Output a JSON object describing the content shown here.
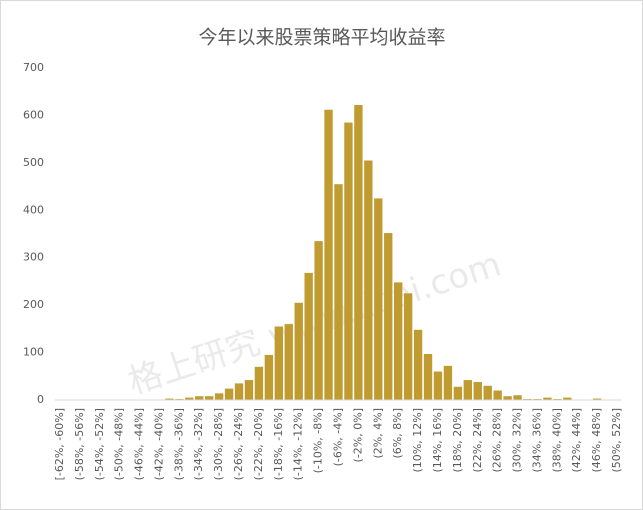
{
  "chart_data": {
    "type": "bar",
    "title": "今年以来股票策略平均收益率",
    "watermark": "格上研究 www.licai.com",
    "categories": [
      "[-62%, -60%]",
      null,
      "(-58%, -56%]",
      null,
      "(-54%, -52%]",
      null,
      "(-50%, -48%]",
      null,
      "(-46%, -44%]",
      null,
      "(-42%, -40%]",
      null,
      "(-38%, -36%]",
      null,
      "(-34%, -32%]",
      null,
      "(-30%, -28%]",
      null,
      "(-26%, -24%]",
      null,
      "(-22%, -20%]",
      null,
      "(-18%, -16%]",
      null,
      "(-14%, -12%]",
      null,
      "(-10%, -8%]",
      null,
      "(-6%, -4%]",
      null,
      "(-2%, 0%]",
      null,
      "(2%, 4%]",
      null,
      "(6%, 8%]",
      null,
      "(10%, 12%]",
      null,
      "(14%, 16%]",
      null,
      "(18%, 20%]",
      null,
      "(22%, 24%]",
      null,
      "(26%, 28%]",
      null,
      "(30%, 32%]",
      null,
      "(34%, 36%]",
      null,
      "(38%, 40%]",
      null,
      "(42%, 44%]",
      null,
      "(46%, 48%]",
      null,
      "(50%, 52%]"
    ],
    "values": [
      0,
      0,
      0,
      0,
      0,
      0,
      0,
      0,
      0,
      0,
      0,
      3,
      2,
      5,
      8,
      8,
      14,
      24,
      35,
      42,
      70,
      95,
      155,
      160,
      205,
      268,
      335,
      612,
      455,
      585,
      622,
      505,
      425,
      352,
      248,
      225,
      148,
      97,
      60,
      72,
      28,
      42,
      38,
      30,
      20,
      8,
      10,
      2,
      2,
      5,
      2,
      5,
      0,
      0,
      3,
      0,
      0
    ],
    "color": "#bf9b30",
    "ylim": [
      0,
      700
    ],
    "yticks": [
      0,
      100,
      200,
      300,
      400,
      500,
      600,
      700
    ],
    "grid": false
  }
}
